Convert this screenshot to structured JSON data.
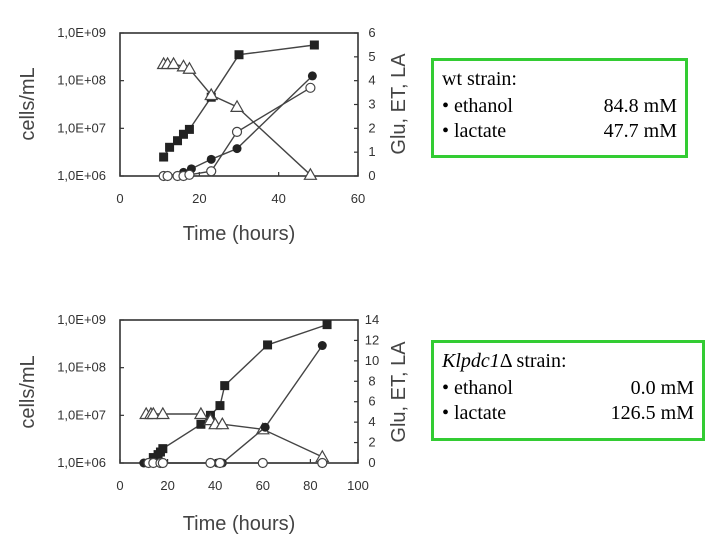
{
  "legends": [
    {
      "title_main": "wt strain:",
      "rows": [
        {
          "label": "• ethanol",
          "value": "84.8 mM"
        },
        {
          "label": "• lactate",
          "value": "47.7 mM"
        }
      ]
    },
    {
      "title_italic": "Klpdc1",
      "title_main": "Δ strain:",
      "rows": [
        {
          "label": "• ethanol",
          "value": "0.0 mM"
        },
        {
          "label": "• lactate",
          "value": "126.5 mM"
        }
      ]
    }
  ],
  "chart_data": [
    {
      "type": "line",
      "xlabel": "Time (hours)",
      "ylabel": "cells/mL",
      "y2label": "Glu, ET, LA",
      "xlim": [
        0,
        60
      ],
      "xticks": [
        "0",
        "20",
        "40",
        "60"
      ],
      "ylim": [
        1000000,
        1000000000
      ],
      "yscale": "log",
      "yticks": [
        "1,0E+06",
        "1,0E+07",
        "1,0E+08",
        "1,0E+09"
      ],
      "y2lim": [
        0,
        6
      ],
      "y2ticks": [
        "0",
        "1",
        "2",
        "3",
        "4",
        "5",
        "6"
      ],
      "series": [
        {
          "marker": "filled-square",
          "axis": "left",
          "x": [
            11,
            12.5,
            14.5,
            16,
            17.5,
            23,
            30,
            49
          ],
          "y": [
            2500000,
            4000000,
            5500000,
            7500000,
            9500000,
            45000000,
            350000000,
            560000000
          ]
        },
        {
          "marker": "open-triangle",
          "axis": "right",
          "x": [
            11,
            12,
            13.5,
            16,
            17.5,
            23,
            29.5,
            48
          ],
          "y": [
            4.7,
            4.7,
            4.7,
            4.6,
            4.5,
            3.4,
            2.9,
            0.05
          ]
        },
        {
          "marker": "filled-circle",
          "axis": "right",
          "x": [
            11,
            12,
            16,
            18,
            23,
            29.5,
            48.5
          ],
          "y": [
            0,
            0,
            0.15,
            0.3,
            0.7,
            1.15,
            4.2
          ]
        },
        {
          "marker": "open-circle",
          "axis": "right",
          "x": [
            11,
            12,
            14.5,
            16,
            17.5,
            23,
            29.5,
            48
          ],
          "y": [
            0,
            0,
            0,
            0,
            0.05,
            0.2,
            1.85,
            3.7
          ]
        }
      ]
    },
    {
      "type": "line",
      "xlabel": "Time (hours)",
      "ylabel": "cells/mL",
      "y2label": "Glu, ET, LA",
      "xlim": [
        0,
        100
      ],
      "xticks": [
        "0",
        "20",
        "40",
        "60",
        "80",
        "100"
      ],
      "ylim": [
        1000000,
        1000000000
      ],
      "yscale": "log",
      "yticks": [
        "1,0E+06",
        "1,0E+07",
        "1,0E+08",
        "1,0E+09"
      ],
      "y2lim": [
        0,
        14
      ],
      "y2ticks": [
        "0",
        "2",
        "4",
        "6",
        "8",
        "10",
        "12",
        "14"
      ],
      "series": [
        {
          "marker": "filled-square",
          "axis": "left",
          "x": [
            14,
            16,
            17,
            18,
            34,
            38,
            42,
            44,
            62,
            87
          ],
          "y": [
            1300000,
            1500000,
            1700000,
            2000000,
            6500000,
            10000000,
            16000000,
            42000000,
            300000000,
            800000000
          ]
        },
        {
          "marker": "open-triangle",
          "axis": "right",
          "x": [
            11,
            13,
            14,
            18,
            34,
            38,
            40,
            43,
            60,
            85
          ],
          "y": [
            4.8,
            4.8,
            4.8,
            4.8,
            4.8,
            4.2,
            3.8,
            3.8,
            3.3,
            0.6
          ]
        },
        {
          "marker": "filled-circle",
          "axis": "right",
          "x": [
            10,
            14,
            17,
            18,
            38,
            41,
            43,
            61,
            85
          ],
          "y": [
            0,
            0,
            0,
            0,
            0,
            0,
            0,
            3.5,
            11.5
          ]
        },
        {
          "marker": "open-circle",
          "axis": "right",
          "x": [
            12,
            14,
            17,
            18,
            38,
            42,
            60,
            85
          ],
          "y": [
            0,
            0,
            0,
            0,
            0,
            0,
            0,
            0
          ]
        }
      ]
    }
  ]
}
